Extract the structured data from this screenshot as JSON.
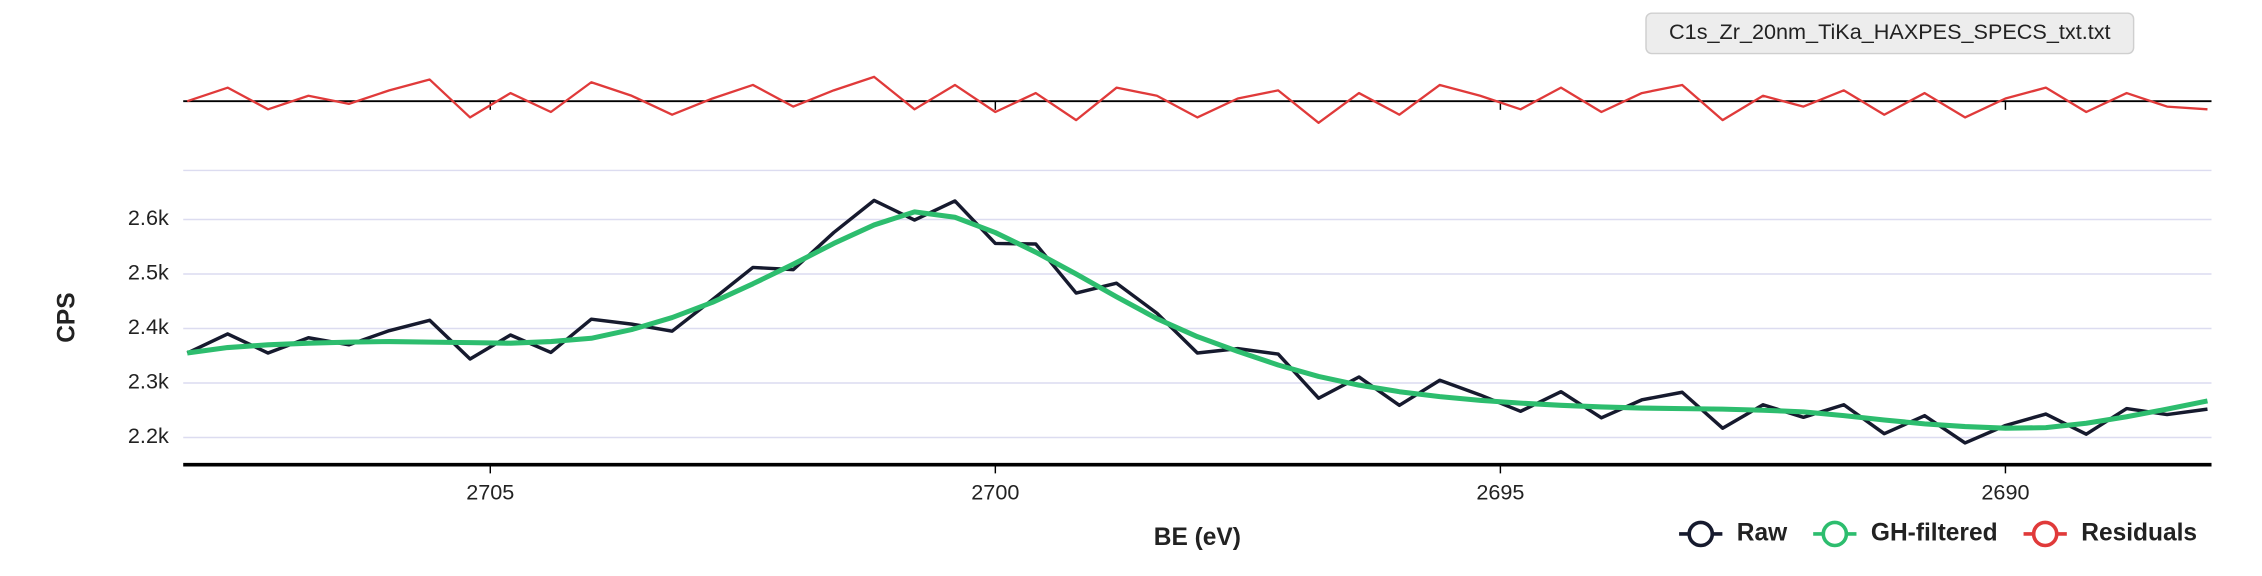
{
  "tooltip": "C1s_Zr_20nm_TiKa_HAXPES_SPECS_txt.txt",
  "chart_data": {
    "type": "line",
    "x_label": "BE (eV)",
    "y_label": "CPS",
    "x": [
      2708.0,
      2707.6,
      2707.2,
      2706.8,
      2706.4,
      2706.0,
      2705.6,
      2705.2,
      2704.8,
      2704.4,
      2704.0,
      2703.6,
      2703.2,
      2702.8,
      2702.4,
      2702.0,
      2701.6,
      2701.2,
      2700.8,
      2700.4,
      2700.0,
      2699.6,
      2699.2,
      2698.8,
      2698.4,
      2698.0,
      2697.6,
      2697.2,
      2696.8,
      2696.4,
      2696.0,
      2695.6,
      2695.2,
      2694.8,
      2694.4,
      2694.0,
      2693.6,
      2693.2,
      2692.8,
      2692.4,
      2692.0,
      2691.6,
      2691.2,
      2690.8,
      2690.4,
      2690.0,
      2689.6,
      2689.2,
      2688.8,
      2688.4,
      2688.0
    ],
    "xlim": [
      2708.04,
      2687.96
    ],
    "xticks": [
      2705,
      2700,
      2695,
      2690
    ],
    "ylim": [
      2150,
      2690
    ],
    "yticks": [
      {
        "value": 2200,
        "label": "2.2k"
      },
      {
        "value": 2300,
        "label": "2.3k"
      },
      {
        "value": 2400,
        "label": "2.4k"
      },
      {
        "value": 2500,
        "label": "2.5k"
      },
      {
        "value": 2600,
        "label": "2.6k"
      }
    ],
    "y2lim": [
      -80,
      80
    ],
    "grid": true,
    "legend": "bottom-right",
    "series": [
      {
        "name": "Raw",
        "color": "#161a2e",
        "values": [
          2355,
          2390,
          2355,
          2383,
          2370,
          2396,
          2415,
          2344,
          2388,
          2356,
          2417,
          2408,
          2395,
          2453,
          2512,
          2508,
          2576,
          2635,
          2599,
          2634,
          2556,
          2555,
          2465,
          2483,
          2428,
          2355,
          2363,
          2353,
          2272,
          2311,
          2259,
          2305,
          2278,
          2248,
          2284,
          2236,
          2269,
          2283,
          2217,
          2260,
          2237,
          2260,
          2207,
          2240,
          2190,
          2222,
          2243,
          2206,
          2253,
          2242,
          2252
        ]
      },
      {
        "name": "GH-filtered",
        "color": "#2dbd6e",
        "values": [
          2355,
          2365,
          2370,
          2373,
          2375,
          2376,
          2375,
          2374,
          2373,
          2376,
          2382,
          2398,
          2420,
          2448,
          2482,
          2518,
          2556,
          2590,
          2614,
          2604,
          2576,
          2540,
          2500,
          2458,
          2418,
          2385,
          2358,
          2333,
          2312,
          2296,
          2284,
          2275,
          2268,
          2263,
          2259,
          2256,
          2254,
          2253,
          2252,
          2250,
          2247,
          2240,
          2232,
          2225,
          2220,
          2217,
          2218,
          2226,
          2238,
          2252,
          2267
        ]
      },
      {
        "name": "Residuals",
        "color": "#e03a3a",
        "axis": "y2",
        "values": [
          0,
          25,
          -15,
          10,
          -5,
          20,
          40,
          -30,
          15,
          -20,
          35,
          10,
          -25,
          5,
          30,
          -10,
          20,
          45,
          -15,
          30,
          -20,
          15,
          -35,
          25,
          10,
          -30,
          5,
          20,
          -40,
          15,
          -25,
          30,
          10,
          -15,
          25,
          -20,
          15,
          30,
          -35,
          10,
          -10,
          20,
          -25,
          15,
          -30,
          5,
          25,
          -20,
          15,
          -10,
          -15
        ]
      }
    ]
  }
}
